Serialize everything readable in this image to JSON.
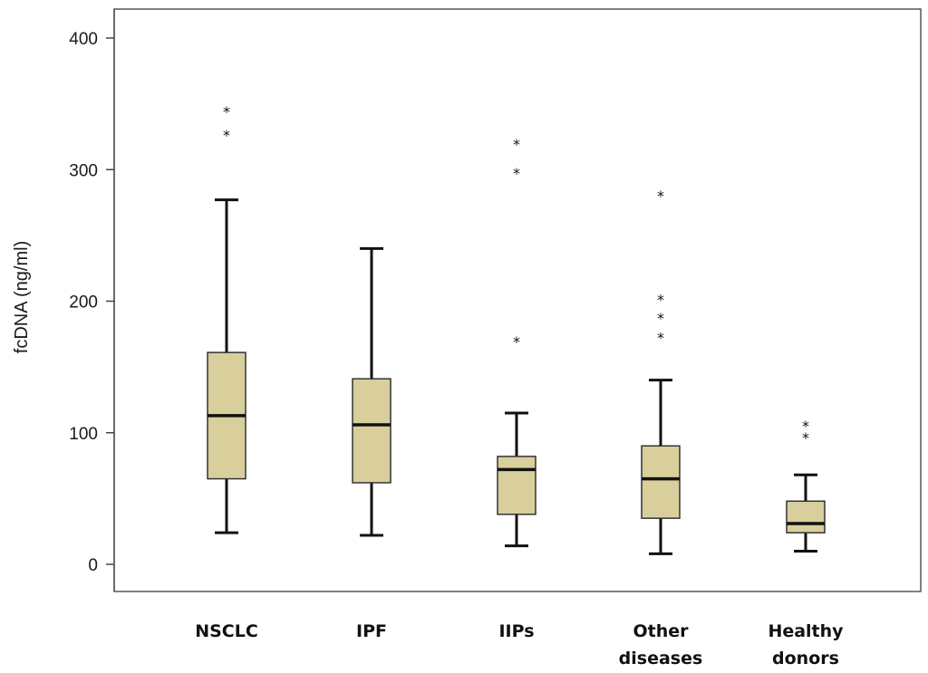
{
  "chart_data": {
    "type": "boxplot",
    "title": "",
    "xlabel": "",
    "ylabel": "fcDNA (ng/ml)",
    "ylim": [
      -20,
      420
    ],
    "yticks": [
      0,
      100,
      200,
      300,
      400
    ],
    "ytick_labels": [
      "0",
      "100",
      "200",
      "300",
      "400"
    ],
    "grid": false,
    "outlier_marker": "*",
    "box_color": "#d8cf9c",
    "categories": [
      {
        "label_lines": [
          "NSCLC"
        ],
        "whisker_low": 24,
        "q1": 65,
        "median": 113,
        "q3": 161,
        "whisker_high": 277,
        "outliers": [
          327,
          345
        ]
      },
      {
        "label_lines": [
          "IPF"
        ],
        "whisker_low": 22,
        "q1": 62,
        "median": 106,
        "q3": 141,
        "whisker_high": 240,
        "outliers": []
      },
      {
        "label_lines": [
          "IIPs"
        ],
        "whisker_low": 14,
        "q1": 38,
        "median": 72,
        "q3": 82,
        "whisker_high": 115,
        "outliers": [
          170,
          298,
          320
        ]
      },
      {
        "label_lines": [
          "Other",
          "diseases"
        ],
        "whisker_low": 8,
        "q1": 35,
        "median": 65,
        "q3": 90,
        "whisker_high": 140,
        "outliers": [
          173,
          188,
          202,
          281
        ]
      },
      {
        "label_lines": [
          "Healthy",
          "donors"
        ],
        "whisker_low": 10,
        "q1": 24,
        "median": 31,
        "q3": 48,
        "whisker_high": 68,
        "outliers": [
          97,
          106
        ]
      }
    ]
  }
}
